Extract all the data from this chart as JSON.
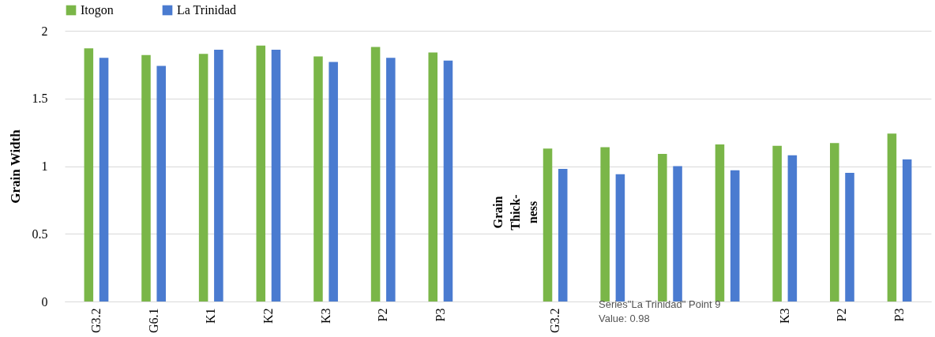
{
  "chart_data": {
    "type": "bar",
    "ylabel": "Grain Width",
    "categories": [
      "G3.2",
      "G6.1",
      "K1",
      "K2",
      "K3",
      "P2",
      "P3",
      null,
      "G3.2",
      null,
      null,
      null,
      "K3",
      "P2",
      "P3"
    ],
    "series": [
      {
        "name": "Itogon",
        "color": "#7ab648",
        "values": [
          1.87,
          1.82,
          1.83,
          1.89,
          1.81,
          1.88,
          1.84,
          null,
          1.13,
          1.14,
          1.09,
          1.16,
          1.15,
          1.17,
          1.24
        ]
      },
      {
        "name": "La Trinidad",
        "color": "#4a7bd0",
        "values": [
          1.8,
          1.74,
          1.86,
          1.86,
          1.77,
          1.8,
          1.78,
          null,
          0.98,
          0.94,
          1.0,
          0.97,
          1.08,
          0.95,
          1.05
        ]
      }
    ],
    "ylim": [
      0,
      2
    ],
    "yticks": [
      0,
      0.5,
      1,
      1.5,
      2
    ],
    "grid": "y",
    "legend": "top",
    "annotations": [
      "Grain\nThick-\nness",
      "Series\"La Trinidad\" Point 9\nValue: 0.98"
    ]
  }
}
